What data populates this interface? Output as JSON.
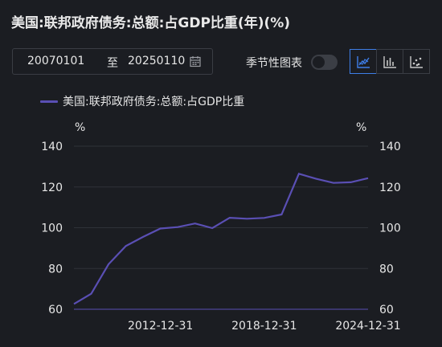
{
  "title": "美国:联邦政府债务:总额:占GDP比重(年)(%)",
  "date_range": {
    "start": "20070101",
    "separator": "至",
    "end": "20250110"
  },
  "season_label": "季节性图表",
  "toggle_on": false,
  "buttons": [
    {
      "name": "line-chart-button",
      "icon": "line-chart-icon",
      "active": true
    },
    {
      "name": "bar-chart-button",
      "icon": "bar-chart-icon",
      "active": false
    },
    {
      "name": "scatter-chart-button",
      "icon": "scatter-chart-icon",
      "active": false
    }
  ],
  "colors": {
    "series": "#5a4fb4",
    "accent": "#3e7ee8",
    "background": "#1b1d22",
    "grid": "#2f3238"
  },
  "chart_data": {
    "type": "line",
    "title": "美国:联邦政府债务:总额:占GDP比重(年)(%)",
    "unit_left": "%",
    "unit_right": "%",
    "x": [
      "2007-12-31",
      "2008-12-31",
      "2009-12-31",
      "2010-12-31",
      "2011-12-31",
      "2012-12-31",
      "2013-12-31",
      "2014-12-31",
      "2015-12-31",
      "2016-12-31",
      "2017-12-31",
      "2018-12-31",
      "2019-12-31",
      "2020-12-31",
      "2021-12-31",
      "2022-12-31",
      "2023-12-31",
      "2024-12-31"
    ],
    "series": [
      {
        "name": "美国:联邦政府债务:总额:占GDP比重",
        "values": [
          62.6,
          67.6,
          82.1,
          91.0,
          95.5,
          99.6,
          100.3,
          102.1,
          99.8,
          104.9,
          104.4,
          104.8,
          106.5,
          126.5,
          124.0,
          122.0,
          122.3,
          124.3
        ]
      }
    ],
    "x_tick_labels": [
      "2012-12-31",
      "2018-12-31",
      "2024-12-31"
    ],
    "y_ticks": [
      60,
      80,
      100,
      120,
      140
    ],
    "ylim": [
      60,
      140
    ],
    "grid": true,
    "legend_position": "top-left"
  }
}
